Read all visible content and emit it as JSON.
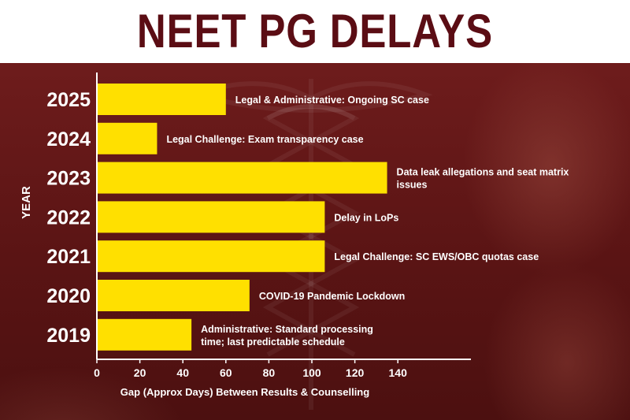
{
  "title": "NEET PG DELAYS",
  "colors": {
    "bar": "#ffe000",
    "title": "#5b0d14",
    "text": "#ffffff",
    "background": "#5e1616"
  },
  "chart_data": {
    "type": "bar",
    "orientation": "horizontal",
    "categories": [
      "2025",
      "2024",
      "2023",
      "2022",
      "2021",
      "2020",
      "2019"
    ],
    "values": [
      60,
      28,
      135,
      106,
      106,
      71,
      44
    ],
    "annotations": [
      "Legal & Administrative: Ongoing SC case",
      "Legal Challenge: Exam transparency case",
      "Data leak allegations and seat matrix issues",
      "Delay in LoPs",
      "Legal Challenge: SC EWS/OBC quotas case",
      "COVID-19 Pandemic Lockdown",
      "Administrative: Standard processing time; last predictable schedule"
    ],
    "xlabel": "Gap (Approx Days) Between Results & Counselling",
    "ylabel": "YEAR",
    "xlim": [
      0,
      170
    ],
    "xticks": [
      0,
      20,
      40,
      60,
      80,
      100,
      120,
      140
    ],
    "grid": false,
    "legend": "none"
  }
}
